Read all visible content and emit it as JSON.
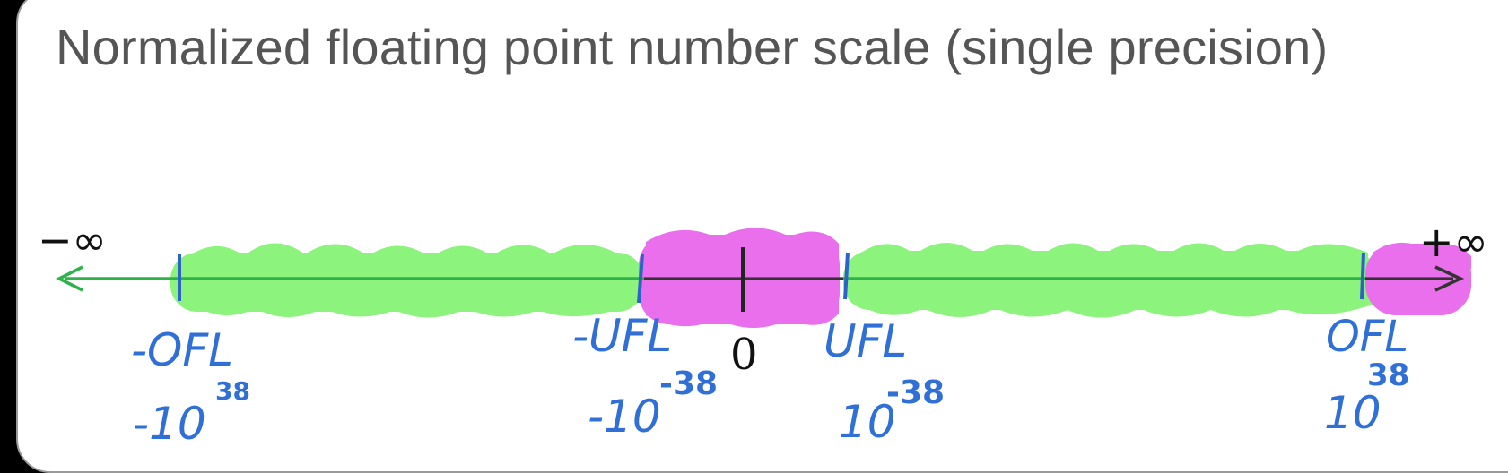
{
  "title": "Normalized floating point number scale (single precision)",
  "ends": {
    "neg_inf": "−∞",
    "pos_inf": "+∞"
  },
  "markers": {
    "neg_ofl": {
      "label": "-OFL",
      "value_base": "-10",
      "value_exp": "38"
    },
    "neg_ufl": {
      "label": "-UFL",
      "value_base": "-10",
      "value_exp": "-38"
    },
    "zero": {
      "label": "0"
    },
    "ufl": {
      "label": "UFL",
      "value_base": "10",
      "value_exp": "-38"
    },
    "ofl": {
      "label": "OFL",
      "value_base": "10",
      "value_exp": "38"
    }
  },
  "colors": {
    "representable": "#8cf37c",
    "not_representable": "#ea6fec",
    "axis": "#2db34a",
    "tick": "#2d63c8",
    "handwriting": "#2f6fd6"
  }
}
